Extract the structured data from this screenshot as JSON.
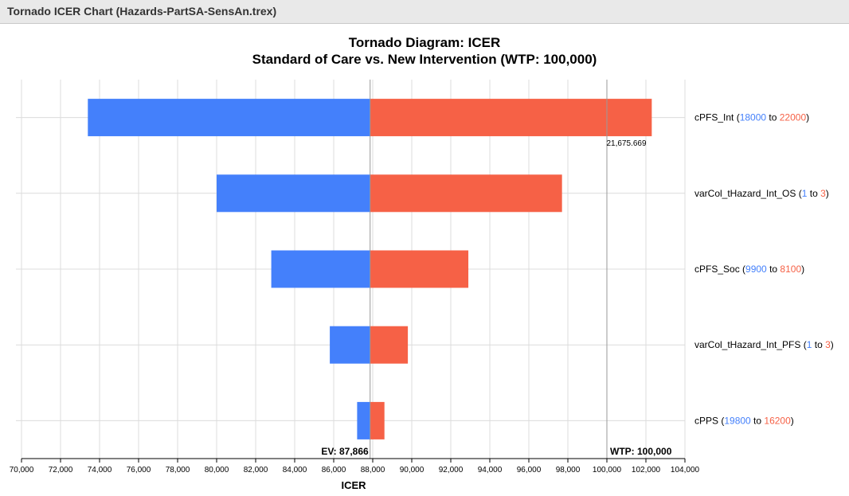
{
  "window": {
    "title": "Tornado ICER Chart (Hazards-PartSA-SensAn.trex)"
  },
  "colors": {
    "low": "#4480fb",
    "high": "#f66146",
    "grid": "#dcdcdc",
    "refline": "#999999"
  },
  "chart_data": {
    "type": "bar",
    "subtype": "tornado",
    "title": "Tornado Diagram: ICER",
    "subtitle": "Standard of Care vs. New Intervention (WTP: 100,000)",
    "xlabel": "ICER",
    "xlim": [
      70000,
      104000
    ],
    "xticks": [
      70000,
      72000,
      74000,
      76000,
      78000,
      80000,
      82000,
      84000,
      86000,
      88000,
      90000,
      92000,
      94000,
      96000,
      98000,
      100000,
      102000,
      104000
    ],
    "xtick_labels": [
      "70,000",
      "72,000",
      "74,000",
      "76,000",
      "78,000",
      "80,000",
      "82,000",
      "84,000",
      "86,000",
      "88,000",
      "90,000",
      "92,000",
      "94,000",
      "96,000",
      "98,000",
      "100,000",
      "102,000",
      "104,000"
    ],
    "grid": true,
    "ev": {
      "value": 87866,
      "label": "EV: 87,866"
    },
    "wtp": {
      "value": 100000,
      "label": "WTP: 100,000"
    },
    "annotation": {
      "text": "21,675.669",
      "anchor": "cPFS_Int",
      "x": 101000
    },
    "bars": [
      {
        "name": "cPFS_Int",
        "low": "18000",
        "high": "22000",
        "low_result": 73400,
        "high_result": 102300
      },
      {
        "name": "varCol_tHazard_Int_OS",
        "low": "1",
        "high": "3",
        "low_result": 80000,
        "high_result": 97700
      },
      {
        "name": "cPFS_Soc",
        "low": "9900",
        "high": "8100",
        "low_result": 82800,
        "high_result": 92900
      },
      {
        "name": "varCol_tHazard_Int_PFS",
        "low": "1",
        "high": "3",
        "low_result": 85800,
        "high_result": 89800
      },
      {
        "name": "cPPS",
        "low": "19800",
        "high": "16200",
        "low_result": 87200,
        "high_result": 88600
      }
    ],
    "range_separator": "to"
  }
}
